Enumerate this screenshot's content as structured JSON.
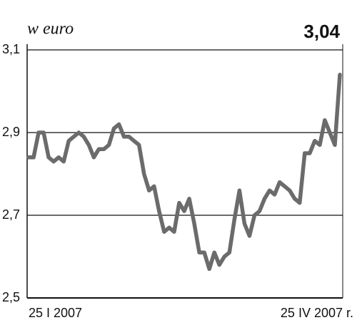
{
  "chart_data": {
    "type": "line",
    "ylabel": "w euro",
    "categories": [
      "25 I 2007",
      null,
      null,
      null,
      null,
      null,
      null,
      null,
      null,
      null,
      null,
      null,
      null,
      null,
      null,
      null,
      null,
      null,
      null,
      null,
      null,
      null,
      null,
      null,
      null,
      null,
      null,
      null,
      null,
      null,
      null,
      null,
      null,
      null,
      null,
      null,
      null,
      null,
      null,
      null,
      null,
      null,
      null,
      null,
      null,
      null,
      null,
      null,
      null,
      null,
      null,
      null,
      null,
      null,
      null,
      null,
      null,
      null,
      null,
      null,
      null,
      null,
      "25 IV 2007 r."
    ],
    "values": [
      2.84,
      2.84,
      2.9,
      2.9,
      2.84,
      2.83,
      2.84,
      2.83,
      2.88,
      2.89,
      2.9,
      2.89,
      2.87,
      2.84,
      2.86,
      2.86,
      2.87,
      2.91,
      2.92,
      2.89,
      2.89,
      2.88,
      2.87,
      2.8,
      2.76,
      2.77,
      2.71,
      2.66,
      2.67,
      2.66,
      2.73,
      2.71,
      2.74,
      2.68,
      2.61,
      2.61,
      2.57,
      2.61,
      2.58,
      2.6,
      2.61,
      2.69,
      2.76,
      2.68,
      2.65,
      2.7,
      2.71,
      2.74,
      2.76,
      2.75,
      2.78,
      2.77,
      2.76,
      2.74,
      2.73,
      2.85,
      2.85,
      2.88,
      2.87,
      2.93,
      2.9,
      2.87,
      3.04
    ],
    "value_labels": [
      null,
      null,
      null,
      null,
      null,
      null,
      null,
      null,
      null,
      null,
      null,
      null,
      null,
      null,
      null,
      null,
      null,
      null,
      null,
      null,
      null,
      null,
      null,
      null,
      null,
      null,
      null,
      null,
      null,
      null,
      null,
      null,
      null,
      null,
      null,
      null,
      null,
      null,
      null,
      null,
      null,
      null,
      null,
      null,
      null,
      null,
      null,
      null,
      null,
      null,
      null,
      null,
      null,
      null,
      null,
      null,
      null,
      null,
      null,
      null,
      null,
      null,
      "3,04"
    ],
    "color": "#6b6b6b",
    "ylim": [
      2.5,
      3.1
    ],
    "yticks": [
      {
        "value": 3.1,
        "label": "3,1"
      },
      {
        "value": 2.9,
        "label": "2,9"
      },
      {
        "value": 2.7,
        "label": "2,7"
      },
      {
        "value": 2.5,
        "label": "2,5"
      }
    ],
    "grid": true
  }
}
